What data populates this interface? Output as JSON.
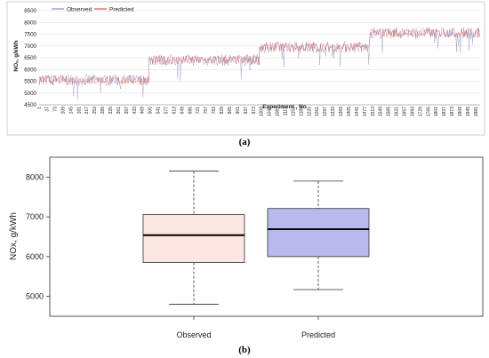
{
  "chart_data": [
    {
      "panel": "(a)",
      "type": "line",
      "title": "",
      "xlabel": "Experiment , No",
      "ylabel": "NOₓ, g/kWh",
      "ylim": [
        4500,
        8500
      ],
      "yticks": [
        4500,
        5000,
        5500,
        6000,
        6500,
        7000,
        7500,
        8000,
        8500
      ],
      "xlim": [
        1,
        2000
      ],
      "xticks": [
        1,
        37,
        73,
        109,
        145,
        181,
        217,
        253,
        289,
        325,
        361,
        397,
        433,
        469,
        505,
        541,
        577,
        613,
        649,
        685,
        721,
        757,
        793,
        829,
        865,
        901,
        937,
        973,
        1009,
        1045,
        1081,
        1117,
        1153,
        1189,
        1225,
        1261,
        1297,
        1333,
        1369,
        1405,
        1441,
        1477,
        1513,
        1549,
        1585,
        1621,
        1657,
        1693,
        1729,
        1765,
        1801,
        1837,
        1873,
        1909,
        1945,
        1981
      ],
      "legend_position": "top-left",
      "grid": "horizontal",
      "series": [
        {
          "name": "Observed",
          "color": "#8c8fbf",
          "segments": [
            {
              "x": [
                1,
                500
              ],
              "mean": 5550,
              "spread": 250
            },
            {
              "x": [
                500,
                1000
              ],
              "mean": 6400,
              "spread": 250
            },
            {
              "x": [
                1000,
                1500
              ],
              "mean": 6950,
              "spread": 250
            },
            {
              "x": [
                1500,
                2000
              ],
              "mean": 7550,
              "spread": 250
            }
          ]
        },
        {
          "name": "Predicted",
          "color": "#d9534f",
          "segments": [
            {
              "x": [
                1,
                500
              ],
              "mean": 5550,
              "spread": 200
            },
            {
              "x": [
                500,
                1000
              ],
              "mean": 6400,
              "spread": 200
            },
            {
              "x": [
                1000,
                1500
              ],
              "mean": 6950,
              "spread": 200
            },
            {
              "x": [
                1500,
                2000
              ],
              "mean": 7550,
              "spread": 200
            }
          ]
        }
      ]
    },
    {
      "panel": "(b)",
      "type": "box",
      "title": "",
      "xlabel": "",
      "ylabel": "NOx, g/kWh",
      "ylim": [
        4500,
        8500
      ],
      "yticks": [
        5000,
        6000,
        7000,
        8000
      ],
      "categories": [
        "Observed",
        "Predicted"
      ],
      "boxes": [
        {
          "name": "Observed",
          "min": 4800,
          "q1": 5850,
          "median": 6540,
          "q3": 7060,
          "max": 8150,
          "color": "#fbe6e1"
        },
        {
          "name": "Predicted",
          "min": 5170,
          "q1": 6000,
          "median": 6690,
          "q3": 7210,
          "max": 7900,
          "color": "#b9b9ee"
        }
      ]
    }
  ],
  "captions": {
    "a": "(a)",
    "b": "(b)"
  }
}
